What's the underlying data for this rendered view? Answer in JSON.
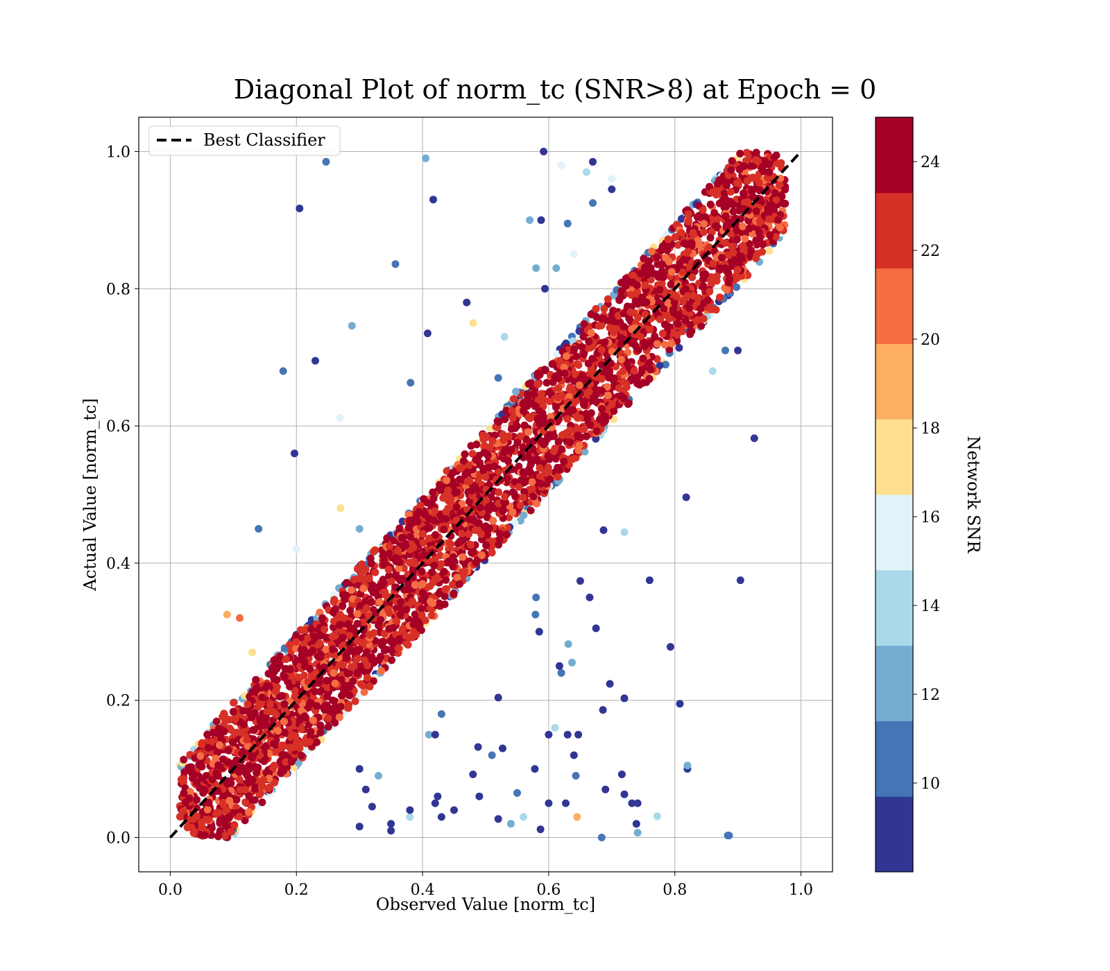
{
  "chart_data": {
    "type": "scatter",
    "title": "Diagonal Plot of norm_tc (SNR>8) at Epoch = 0",
    "xlabel": "Observed Value [norm_tc]",
    "ylabel": "Actual Value [norm_tc]",
    "xlim": [
      -0.05,
      1.05
    ],
    "ylim": [
      -0.05,
      1.05
    ],
    "xticks": [
      "0.0",
      "0.2",
      "0.4",
      "0.6",
      "0.8",
      "1.0"
    ],
    "yticks": [
      "0.0",
      "0.2",
      "0.4",
      "0.6",
      "0.8",
      "1.0"
    ],
    "grid": true,
    "legend": {
      "placement": "upper-left",
      "label": "Best Classifier",
      "style": "black dashed line"
    },
    "reference_line": {
      "name": "Best Classifier",
      "x": [
        0,
        1
      ],
      "y": [
        0,
        1
      ],
      "color": "#000000",
      "dash": "dashed"
    },
    "colorbar": {
      "label": "Network SNR",
      "range": [
        8,
        25
      ],
      "ticks": [
        "10",
        "12",
        "14",
        "16",
        "18",
        "20",
        "22",
        "24"
      ],
      "colors": [
        "#313695",
        "#4575b4",
        "#74add1",
        "#abd9e9",
        "#e0f3f8",
        "#fee090",
        "#fdae61",
        "#f46d43",
        "#d73027",
        "#a50026"
      ]
    },
    "outliers": [
      [
        0.247,
        0.985,
        10
      ],
      [
        0.405,
        0.99,
        13
      ],
      [
        0.592,
        1.0,
        9
      ],
      [
        0.67,
        0.985,
        9
      ],
      [
        0.205,
        0.917,
        9
      ],
      [
        0.417,
        0.93,
        9
      ],
      [
        0.357,
        0.836,
        11
      ],
      [
        0.288,
        0.746,
        13
      ],
      [
        0.23,
        0.695,
        9
      ],
      [
        0.179,
        0.68,
        11
      ],
      [
        0.408,
        0.735,
        9
      ],
      [
        0.381,
        0.663,
        11
      ],
      [
        0.197,
        0.56,
        9
      ],
      [
        0.269,
        0.612,
        15
      ],
      [
        0.14,
        0.45,
        11
      ],
      [
        0.588,
        0.9,
        9
      ],
      [
        0.57,
        0.9,
        12
      ],
      [
        0.7,
        0.945,
        9
      ],
      [
        0.67,
        0.925,
        11
      ],
      [
        0.63,
        0.895,
        10
      ],
      [
        0.594,
        0.8,
        9
      ],
      [
        0.47,
        0.78,
        9
      ],
      [
        0.48,
        0.75,
        18
      ],
      [
        0.926,
        0.582,
        9
      ],
      [
        0.818,
        0.496,
        9
      ],
      [
        0.76,
        0.375,
        9
      ],
      [
        0.904,
        0.375,
        9
      ],
      [
        0.72,
        0.445,
        14
      ],
      [
        0.687,
        0.448,
        9
      ],
      [
        0.65,
        0.374,
        9
      ],
      [
        0.665,
        0.35,
        9
      ],
      [
        0.675,
        0.305,
        9
      ],
      [
        0.793,
        0.278,
        9
      ],
      [
        0.697,
        0.224,
        9
      ],
      [
        0.72,
        0.203,
        9
      ],
      [
        0.808,
        0.195,
        9
      ],
      [
        0.686,
        0.186,
        9
      ],
      [
        0.62,
        0.24,
        11
      ],
      [
        0.631,
        0.282,
        12
      ],
      [
        0.637,
        0.255,
        12
      ],
      [
        0.617,
        0.25,
        9
      ],
      [
        0.58,
        0.35,
        11
      ],
      [
        0.579,
        0.325,
        11
      ],
      [
        0.585,
        0.3,
        9
      ],
      [
        0.61,
        0.16,
        14
      ],
      [
        0.6,
        0.15,
        9
      ],
      [
        0.63,
        0.15,
        9
      ],
      [
        0.647,
        0.15,
        9
      ],
      [
        0.64,
        0.12,
        9
      ],
      [
        0.643,
        0.09,
        11
      ],
      [
        0.69,
        0.07,
        9
      ],
      [
        0.716,
        0.092,
        9
      ],
      [
        0.72,
        0.063,
        9
      ],
      [
        0.732,
        0.05,
        9
      ],
      [
        0.741,
        0.05,
        9
      ],
      [
        0.739,
        0.02,
        9
      ],
      [
        0.741,
        0.007,
        12
      ],
      [
        0.772,
        0.031,
        14
      ],
      [
        0.684,
        0.0,
        11
      ],
      [
        0.886,
        0.003,
        10
      ],
      [
        0.884,
        0.003,
        10
      ],
      [
        0.82,
        0.1,
        9
      ],
      [
        0.82,
        0.105,
        13
      ],
      [
        0.627,
        0.05,
        9
      ],
      [
        0.6,
        0.05,
        9
      ],
      [
        0.578,
        0.1,
        9
      ],
      [
        0.587,
        0.012,
        9
      ],
      [
        0.55,
        0.065,
        10
      ],
      [
        0.56,
        0.03,
        14
      ],
      [
        0.54,
        0.02,
        12
      ],
      [
        0.52,
        0.027,
        9
      ],
      [
        0.49,
        0.06,
        9
      ],
      [
        0.51,
        0.12,
        11
      ],
      [
        0.527,
        0.13,
        9
      ],
      [
        0.52,
        0.204,
        9
      ],
      [
        0.48,
        0.092,
        9
      ],
      [
        0.488,
        0.132,
        9
      ],
      [
        0.45,
        0.04,
        9
      ],
      [
        0.424,
        0.06,
        9
      ],
      [
        0.42,
        0.05,
        9
      ],
      [
        0.43,
        0.03,
        9
      ],
      [
        0.41,
        0.15,
        12
      ],
      [
        0.42,
        0.15,
        9
      ],
      [
        0.43,
        0.18,
        11
      ],
      [
        0.35,
        0.02,
        9
      ],
      [
        0.35,
        0.01,
        9
      ],
      [
        0.38,
        0.03,
        14
      ],
      [
        0.38,
        0.04,
        9
      ],
      [
        0.3,
        0.016,
        9
      ],
      [
        0.32,
        0.045,
        9
      ],
      [
        0.33,
        0.09,
        12
      ],
      [
        0.3,
        0.1,
        9
      ],
      [
        0.31,
        0.07,
        9
      ],
      [
        0.645,
        0.03,
        19
      ],
      [
        0.86,
        0.68,
        14
      ],
      [
        0.88,
        0.71,
        10
      ],
      [
        0.9,
        0.71,
        9
      ],
      [
        0.7,
        0.96,
        15
      ],
      [
        0.66,
        0.97,
        14
      ],
      [
        0.62,
        0.98,
        16
      ],
      [
        0.64,
        0.85,
        16
      ],
      [
        0.53,
        0.73,
        14
      ],
      [
        0.52,
        0.67,
        11
      ],
      [
        0.58,
        0.83,
        12
      ],
      [
        0.612,
        0.83,
        13
      ],
      [
        0.548,
        0.65,
        13
      ],
      [
        0.27,
        0.48,
        17
      ],
      [
        0.11,
        0.32,
        21
      ],
      [
        0.09,
        0.325,
        19
      ],
      [
        0.13,
        0.27,
        18
      ],
      [
        0.2,
        0.42,
        16
      ],
      [
        0.3,
        0.45,
        13
      ]
    ]
  }
}
